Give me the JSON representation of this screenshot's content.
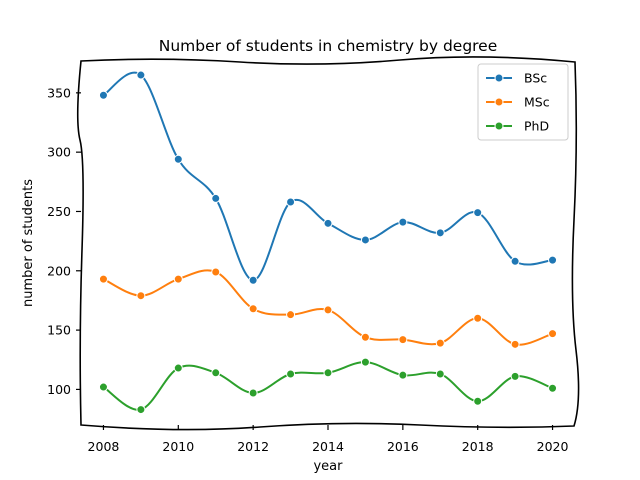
{
  "chart_data": {
    "type": "line",
    "title": "Number of students in chemistry by degree",
    "xlabel": "year",
    "ylabel": "number of students",
    "x": [
      2008,
      2009,
      2010,
      2011,
      2012,
      2013,
      2014,
      2015,
      2016,
      2017,
      2018,
      2019,
      2020
    ],
    "xlim": [
      2007.4,
      2020.6
    ],
    "ylim": [
      70,
      376
    ],
    "xticks": [
      2008,
      2010,
      2012,
      2014,
      2016,
      2018,
      2020
    ],
    "yticks": [
      100,
      150,
      200,
      250,
      300,
      350
    ],
    "grid": false,
    "legend_position": "top-right",
    "series": [
      {
        "name": "BSc",
        "color": "#1f77b4",
        "values": [
          348,
          365,
          294,
          261,
          192,
          258,
          240,
          226,
          241,
          232,
          249,
          208,
          209
        ]
      },
      {
        "name": "MSc",
        "color": "#ff7f0e",
        "values": [
          193,
          179,
          193,
          199,
          168,
          163,
          167,
          144,
          142,
          139,
          160,
          138,
          147
        ]
      },
      {
        "name": "PhD",
        "color": "#2ca02c",
        "values": [
          102,
          83,
          118,
          114,
          97,
          113,
          114,
          123,
          112,
          113,
          90,
          111,
          101
        ]
      }
    ]
  }
}
